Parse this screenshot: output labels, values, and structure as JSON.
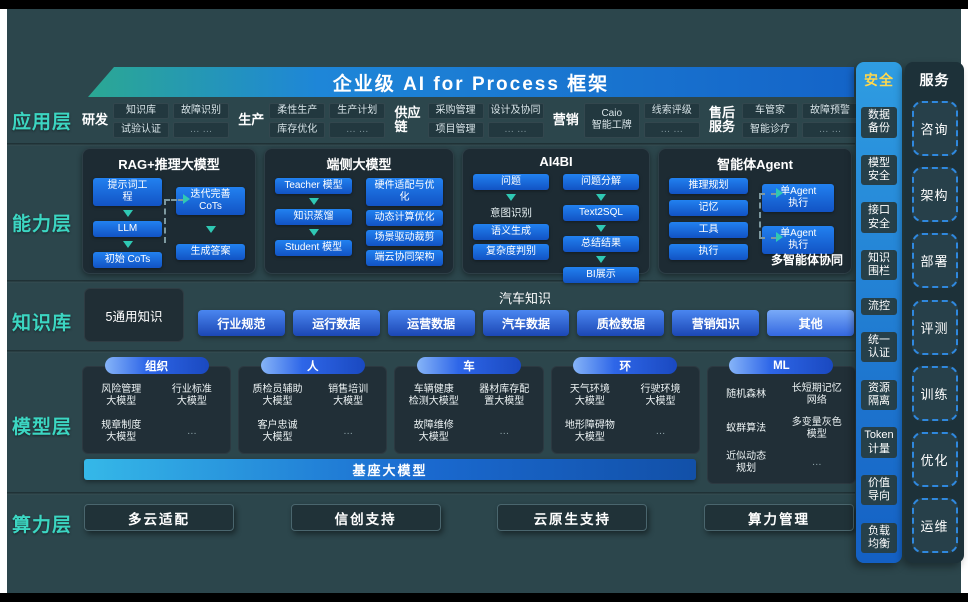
{
  "colors": {
    "background": "#2c464c",
    "accent_teal": "#3cd6c2",
    "primary_blue": "#1b6fd6",
    "banner_gradient_left": "#2ba893",
    "banner_gradient_right": "#1464c8",
    "security_header_yellow": "#ffd84d",
    "arrow_teal": "#2fc8b4"
  },
  "banner": {
    "title": "企业级 AI for Process 框架"
  },
  "layer_labels": {
    "app": "应用层",
    "capability": "能力层",
    "knowledge": "知识库",
    "model": "模型层",
    "compute": "算力层"
  },
  "app_layer": {
    "groups": [
      {
        "label": "研发",
        "cells": [
          {
            "t": "知识库"
          },
          {
            "t": "故障识别"
          },
          {
            "t": "试验认证"
          },
          {
            "t": "… …",
            "dim": true
          }
        ]
      },
      {
        "label": "生产",
        "cells": [
          {
            "t": "柔性生产"
          },
          {
            "t": "生产计划"
          },
          {
            "t": "库存优化"
          },
          {
            "t": "… …",
            "dim": true
          }
        ]
      },
      {
        "label": "供应链",
        "cells": [
          {
            "t": "采购管理"
          },
          {
            "t": "设计及协同"
          },
          {
            "t": "项目管理"
          },
          {
            "t": "… …",
            "dim": true
          }
        ]
      },
      {
        "label": "营销",
        "cells": [
          {
            "t": "Caio\n智能工牌",
            "tall": true
          },
          {
            "t": "线索评级"
          },
          {
            "t": "… …",
            "dim": true
          }
        ]
      },
      {
        "label": "售后服务",
        "cells": [
          {
            "t": "车管家"
          },
          {
            "t": "故障预警"
          },
          {
            "t": "智能诊疗"
          },
          {
            "t": "… …",
            "dim": true
          }
        ]
      }
    ]
  },
  "capability_layer": {
    "boxes": [
      {
        "id": "rag",
        "title": "RAG+推理大模型",
        "columns": [
          {
            "items": [
              {
                "t": "提示词工\n程"
              },
              {
                "t": "LLM"
              },
              {
                "t": "初始 CoTs"
              }
            ],
            "arrows": "all"
          },
          {
            "items": [
              {
                "t": "迭代完善\nCoTs"
              },
              {
                "t": "生成答案"
              }
            ],
            "arrows": "all"
          }
        ]
      },
      {
        "id": "edge",
        "title": "端侧大模型",
        "columns": [
          {
            "items": [
              {
                "t": "Teacher 模型"
              },
              {
                "t": "知识蒸馏"
              },
              {
                "t": "Student 模型"
              }
            ],
            "arrows": "all"
          },
          {
            "items": [
              {
                "t": "硬件适配与优\n化"
              },
              {
                "t": "动态计算优化"
              },
              {
                "t": "场景驱动裁剪"
              },
              {
                "t": "端云协同架构"
              }
            ],
            "arrows": "none"
          }
        ]
      },
      {
        "id": "ai4bi",
        "title": "AI4BI",
        "columns": [
          {
            "items": [
              {
                "t": "问题"
              },
              {
                "t": "意图识别",
                "plain": true
              },
              {
                "t": "语义生成"
              },
              {
                "t": "复杂度判别"
              }
            ],
            "arrows": [
              0
            ]
          },
          {
            "items": [
              {
                "t": "问题分解"
              },
              {
                "t": "Text2SQL"
              },
              {
                "t": "总结结果"
              },
              {
                "t": "BI展示"
              }
            ],
            "arrows": "all"
          }
        ]
      },
      {
        "id": "agent",
        "title": "智能体Agent",
        "note": "多智能体协同",
        "columns": [
          {
            "items": [
              {
                "t": "推理规划"
              },
              {
                "t": "记忆"
              },
              {
                "t": "工具"
              },
              {
                "t": "执行"
              }
            ],
            "arrows": "none"
          },
          {
            "items": [
              {
                "t": "单Agent\n执行"
              },
              {
                "t": "单Agent\n执行"
              }
            ],
            "arrows": "none"
          }
        ]
      }
    ]
  },
  "knowledge_layer": {
    "general": "5通用知识",
    "group_title": "汽车知识",
    "pills": [
      {
        "t": "行业规范"
      },
      {
        "t": "运行数据"
      },
      {
        "t": "运营数据"
      },
      {
        "t": "汽车数据"
      },
      {
        "t": "质检数据"
      },
      {
        "t": "营销知识"
      },
      {
        "t": "其他",
        "light": true
      }
    ]
  },
  "model_layer": {
    "groups": [
      {
        "pill": "组织",
        "items": [
          {
            "t": "风险管理\n大模型"
          },
          {
            "t": "行业标准\n大模型"
          },
          {
            "t": "规章制度\n大模型"
          },
          {
            "t": "…",
            "dim": true
          }
        ]
      },
      {
        "pill": "人",
        "items": [
          {
            "t": "质检员辅助\n大模型"
          },
          {
            "t": "销售培训\n大模型"
          },
          {
            "t": "客户忠诚\n大模型"
          },
          {
            "t": "…",
            "dim": true
          }
        ]
      },
      {
        "pill": "车",
        "items": [
          {
            "t": "车辆健康\n检测大模型"
          },
          {
            "t": "器材库存配\n置大模型"
          },
          {
            "t": "故障维修\n大模型"
          },
          {
            "t": "…",
            "dim": true
          }
        ]
      },
      {
        "pill": "环",
        "items": [
          {
            "t": "天气环境\n大模型"
          },
          {
            "t": "行驶环境\n大模型"
          },
          {
            "t": "地形障碍物\n大模型"
          },
          {
            "t": "…",
            "dim": true
          }
        ]
      },
      {
        "pill": "ML",
        "tall": true,
        "items": [
          {
            "t": "随机森林"
          },
          {
            "t": "长短期记忆\n网络"
          },
          {
            "t": "蚁群算法"
          },
          {
            "t": "多变量灰色\n模型"
          },
          {
            "t": "近似动态\n规划"
          },
          {
            "t": "…",
            "dim": true
          }
        ]
      }
    ],
    "base_bar": "基座大模型"
  },
  "compute_layer": {
    "items": [
      "多云适配",
      "信创支持",
      "云原生支持",
      "算力管理"
    ]
  },
  "security_column": {
    "label": "安全",
    "items": [
      "数据\n备份",
      "模型\n安全",
      "接口\n安全",
      "知识\n围栏",
      "流控",
      "统一\n认证",
      "资源\n隔离",
      "Token\n计量",
      "价值\n导向",
      "负载\n均衡"
    ]
  },
  "service_column": {
    "label": "服务",
    "items": [
      "咨询",
      "架构",
      "部署",
      "评测",
      "训练",
      "优化",
      "运维"
    ]
  }
}
